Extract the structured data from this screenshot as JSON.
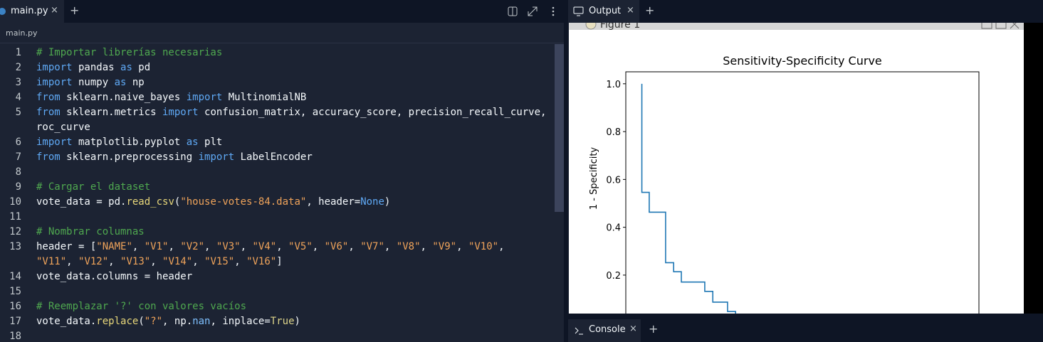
{
  "editor": {
    "tab": "main.py",
    "breadcrumb": "main.py",
    "lines": [
      {
        "number": "1",
        "rows": [
          [
            [
              "# Importar librerías necesarias",
              "#4fa84f"
            ]
          ]
        ]
      },
      {
        "number": "2",
        "rows": [
          [
            [
              "import",
              "#5fa9f5"
            ],
            [
              " pandas ",
              "#f5f9fc"
            ],
            [
              "as",
              "#5fa9f5"
            ],
            [
              " pd",
              "#f5f9fc"
            ]
          ]
        ]
      },
      {
        "number": "3",
        "rows": [
          [
            [
              "import",
              "#5fa9f5"
            ],
            [
              " numpy ",
              "#f5f9fc"
            ],
            [
              "as",
              "#5fa9f5"
            ],
            [
              " np",
              "#f5f9fc"
            ]
          ]
        ]
      },
      {
        "number": "4",
        "rows": [
          [
            [
              "from",
              "#5fa9f5"
            ],
            [
              " sklearn.naive_bayes ",
              "#f5f9fc"
            ],
            [
              "import",
              "#5fa9f5"
            ],
            [
              " MultinomialNB",
              "#f5f9fc"
            ]
          ]
        ]
      },
      {
        "number": "5",
        "rows": [
          [
            [
              "from",
              "#5fa9f5"
            ],
            [
              " sklearn.metrics ",
              "#f5f9fc"
            ],
            [
              "import",
              "#5fa9f5"
            ],
            [
              " confusion_matrix, accuracy_score, precision_recall_curve,",
              "#f5f9fc"
            ]
          ],
          [
            [
              "roc_curve",
              "#f5f9fc"
            ]
          ]
        ]
      },
      {
        "number": "6",
        "rows": [
          [
            [
              "import",
              "#5fa9f5"
            ],
            [
              " matplotlib.pyplot ",
              "#f5f9fc"
            ],
            [
              "as",
              "#5fa9f5"
            ],
            [
              " plt",
              "#f5f9fc"
            ]
          ]
        ]
      },
      {
        "number": "7",
        "rows": [
          [
            [
              "from",
              "#5fa9f5"
            ],
            [
              " sklearn.preprocessing ",
              "#f5f9fc"
            ],
            [
              "import",
              "#5fa9f5"
            ],
            [
              " LabelEncoder",
              "#f5f9fc"
            ]
          ]
        ]
      },
      {
        "number": "8",
        "rows": [
          []
        ]
      },
      {
        "number": "9",
        "rows": [
          [
            [
              "# Cargar el dataset",
              "#4fa84f"
            ]
          ]
        ]
      },
      {
        "number": "10",
        "rows": [
          [
            [
              "vote_data = pd.",
              "#f5f9fc"
            ],
            [
              "read_csv",
              "#e8d77a"
            ],
            [
              "(",
              "#f5f9fc"
            ],
            [
              "\"house-votes-84.data\"",
              "#efa35a"
            ],
            [
              ", header=",
              "#f5f9fc"
            ],
            [
              "None",
              "#5fa9f5"
            ],
            [
              ")",
              "#f5f9fc"
            ]
          ]
        ]
      },
      {
        "number": "11",
        "rows": [
          []
        ]
      },
      {
        "number": "12",
        "rows": [
          [
            [
              "# Nombrar columnas",
              "#4fa84f"
            ]
          ]
        ]
      },
      {
        "number": "13",
        "rows": [
          [
            [
              "header = [",
              "#f5f9fc"
            ],
            [
              "\"NAME\"",
              "#efa35a"
            ],
            [
              ", ",
              "#f5f9fc"
            ],
            [
              "\"V1\"",
              "#efa35a"
            ],
            [
              ", ",
              "#f5f9fc"
            ],
            [
              "\"V2\"",
              "#efa35a"
            ],
            [
              ", ",
              "#f5f9fc"
            ],
            [
              "\"V3\"",
              "#efa35a"
            ],
            [
              ", ",
              "#f5f9fc"
            ],
            [
              "\"V4\"",
              "#efa35a"
            ],
            [
              ", ",
              "#f5f9fc"
            ],
            [
              "\"V5\"",
              "#efa35a"
            ],
            [
              ", ",
              "#f5f9fc"
            ],
            [
              "\"V6\"",
              "#efa35a"
            ],
            [
              ", ",
              "#f5f9fc"
            ],
            [
              "\"V7\"",
              "#efa35a"
            ],
            [
              ", ",
              "#f5f9fc"
            ],
            [
              "\"V8\"",
              "#efa35a"
            ],
            [
              ", ",
              "#f5f9fc"
            ],
            [
              "\"V9\"",
              "#efa35a"
            ],
            [
              ", ",
              "#f5f9fc"
            ],
            [
              "\"V10\"",
              "#efa35a"
            ],
            [
              ",",
              "#f5f9fc"
            ]
          ],
          [
            [
              "\"V11\"",
              "#efa35a"
            ],
            [
              ", ",
              "#f5f9fc"
            ],
            [
              "\"V12\"",
              "#efa35a"
            ],
            [
              ", ",
              "#f5f9fc"
            ],
            [
              "\"V13\"",
              "#efa35a"
            ],
            [
              ", ",
              "#f5f9fc"
            ],
            [
              "\"V14\"",
              "#efa35a"
            ],
            [
              ", ",
              "#f5f9fc"
            ],
            [
              "\"V15\"",
              "#efa35a"
            ],
            [
              ", ",
              "#f5f9fc"
            ],
            [
              "\"V16\"",
              "#efa35a"
            ],
            [
              "]",
              "#f5f9fc"
            ]
          ]
        ]
      },
      {
        "number": "14",
        "rows": [
          [
            [
              "vote_data.columns = header",
              "#f5f9fc"
            ]
          ]
        ]
      },
      {
        "number": "15",
        "rows": [
          []
        ]
      },
      {
        "number": "16",
        "rows": [
          [
            [
              "# Reemplazar '?' con valores vacíos",
              "#4fa84f"
            ]
          ]
        ]
      },
      {
        "number": "17",
        "rows": [
          [
            [
              "vote_data.",
              "#f5f9fc"
            ],
            [
              "replace",
              "#e8d77a"
            ],
            [
              "(",
              "#f5f9fc"
            ],
            [
              "\"?\"",
              "#efa35a"
            ],
            [
              ", np.",
              "#f5f9fc"
            ],
            [
              "nan",
              "#7fc1ff"
            ],
            [
              ", inplace=",
              "#f5f9fc"
            ],
            [
              "True",
              "#dcd38a"
            ],
            [
              ")",
              "#f5f9fc"
            ]
          ]
        ]
      },
      {
        "number": "18",
        "rows": [
          []
        ]
      }
    ]
  },
  "output": {
    "tab": "Output",
    "window_title": "Figure 1",
    "console_tab": "Console",
    "chart_data": {
      "type": "line",
      "title": "Sensitivity-Specificity Curve",
      "ylabel": "1 - Specificity",
      "series": [
        {
          "color": "#1f77b4",
          "x": [
            0,
            0,
            0.023,
            0.023,
            0.074,
            0.074,
            0.099,
            0.099,
            0.123,
            0.123,
            0.196,
            0.196,
            0.221,
            0.221,
            0.267,
            0.267,
            0.292,
            0.292
          ],
          "values": [
            1.0,
            0.546,
            0.546,
            0.463,
            0.463,
            0.252,
            0.252,
            0.214,
            0.214,
            0.171,
            0.171,
            0.132,
            0.132,
            0.087,
            0.087,
            0.048,
            0.048,
            0.0
          ]
        }
      ],
      "xlim": [
        -0.05,
        1.05
      ],
      "ylim": [
        -0.05,
        1.05
      ],
      "yticks": [
        0.2,
        0.4,
        0.6,
        0.8,
        {
          "value": 1.0,
          "label": "1.0"
        }
      ]
    }
  }
}
